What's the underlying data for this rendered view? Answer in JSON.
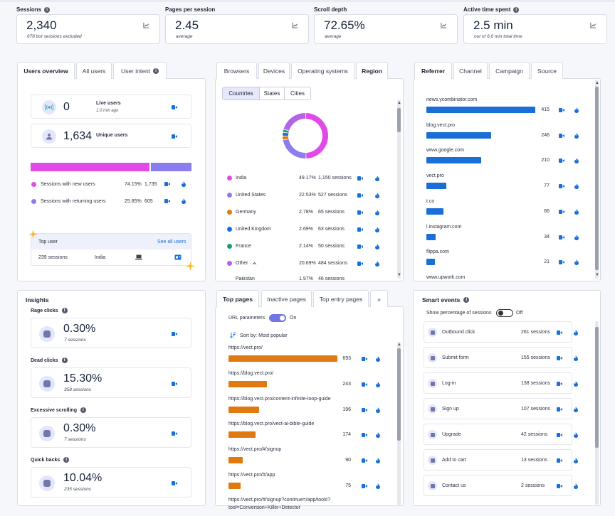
{
  "stats": [
    {
      "label": "Sessions",
      "value": "2,340",
      "sub": "678 bot sessions excluded",
      "info": true
    },
    {
      "label": "Pages per session",
      "value": "2.45",
      "sub": "average",
      "info": false
    },
    {
      "label": "Scroll depth",
      "value": "72.65%",
      "sub": "average",
      "info": false
    },
    {
      "label": "Active time spent",
      "value": "2.5 min",
      "sub": "out of 6.0 min total time",
      "info": true
    }
  ],
  "users": {
    "tabs": [
      "Users overview",
      "All users",
      "User intent"
    ],
    "live_value": "0",
    "live_label": "Live users",
    "live_time": "1.0 min ago",
    "unique_value": "1,634",
    "unique_label": "Unique users",
    "new_label": "Sessions with new users",
    "new_pct": "74.15%",
    "new_count": "1,735",
    "new_fraction": 0.7415,
    "ret_label": "Sessions with returning users",
    "ret_pct": "25.85%",
    "ret_count": "605",
    "top_user_label": "Top user",
    "see_all": "See all users",
    "top_sessions": "239 sessions",
    "top_country": "India"
  },
  "region": {
    "tabs": [
      "Browsers",
      "Devices",
      "Operating systems",
      "Region"
    ],
    "subtabs": [
      "Countries",
      "States",
      "Cities"
    ],
    "rows": [
      {
        "name": "India",
        "pct": "49.17%",
        "sessions": "1,150 sessions",
        "color": "#e14ae8"
      },
      {
        "name": "United States",
        "pct": "22.53%",
        "sessions": "527 sessions",
        "color": "#8b7cf0"
      },
      {
        "name": "Germany",
        "pct": "2.78%",
        "sessions": "65 sessions",
        "color": "#e07a10"
      },
      {
        "name": "United Kingdom",
        "pct": "2.69%",
        "sessions": "63 sessions",
        "color": "#1a6ed8"
      },
      {
        "name": "France",
        "pct": "2.14%",
        "sessions": "50 sessions",
        "color": "#1e9a78"
      },
      {
        "name": "Other",
        "pct": "20.69%",
        "sessions": "484 sessions",
        "color": "#b463e8"
      }
    ],
    "partial_row": {
      "name": "Pakistan",
      "pct": "1.97%",
      "sessions": "46 sessions"
    }
  },
  "referrer": {
    "tabs": [
      "Referrer",
      "Channel",
      "Campaign",
      "Source"
    ],
    "rows": [
      {
        "name": "news.ycombinator.com",
        "count": "415",
        "value": 415
      },
      {
        "name": "blog.vect.pro",
        "count": "246",
        "value": 246
      },
      {
        "name": "www.google.com",
        "count": "210",
        "value": 210
      },
      {
        "name": "vect.pro",
        "count": "77",
        "value": 77
      },
      {
        "name": "t.co",
        "count": "66",
        "value": 66
      },
      {
        "name": "l.instagram.com",
        "count": "34",
        "value": 34
      },
      {
        "name": "flippa.com",
        "count": "21",
        "value": 21
      }
    ],
    "partial_row": "www.upwork.com"
  },
  "insights": {
    "title": "Insights",
    "items": [
      {
        "label": "Rage clicks",
        "value": "0.30%",
        "sub": "7 sessions"
      },
      {
        "label": "Dead clicks",
        "value": "15.30%",
        "sub": "358 sessions"
      },
      {
        "label": "Excessive scrolling",
        "value": "0.30%",
        "sub": "7 sessions"
      },
      {
        "label": "Quick backs",
        "value": "10.04%",
        "sub": "235 sessions"
      }
    ]
  },
  "pages": {
    "tabs": [
      "Top pages",
      "Inactive pages",
      "Top entry pages"
    ],
    "more": "»",
    "url_params_label": "URL parameters",
    "url_params_state": "On",
    "sort_label": "Sort by: Most popular",
    "rows": [
      {
        "url": "https://vect.pro/",
        "count": "693",
        "value": 693
      },
      {
        "url": "https://blog.vect.pro/",
        "count": "243",
        "value": 243
      },
      {
        "url": "https://blog.vect.pro/content-infinite-loop-guide",
        "count": "196",
        "value": 196
      },
      {
        "url": "https://blog.vect.pro/vect-ai-bible-guide",
        "count": "174",
        "value": 174
      },
      {
        "url": "https://vect.pro/#/signup",
        "count": "90",
        "value": 90
      },
      {
        "url": "https://vect.pro/#/app",
        "count": "75",
        "value": 75
      }
    ],
    "partial_row": "https://vect.pro/#/signup?continue=/app/tools?",
    "partial_row2": "tool=Conversion+Killer+Detector"
  },
  "smart": {
    "title": "Smart events",
    "show_pct_label": "Show percentage of sessions",
    "show_pct_state": "Off",
    "rows": [
      {
        "name": "Outbound click",
        "sessions": "261 sessions"
      },
      {
        "name": "Submit form",
        "sessions": "155 sessions"
      },
      {
        "name": "Log-in",
        "sessions": "138 sessions"
      },
      {
        "name": "Sign up",
        "sessions": "107 sessions"
      },
      {
        "name": "Upgrade",
        "sessions": "42 sessions"
      },
      {
        "name": "Add to cart",
        "sessions": "13 sessions"
      },
      {
        "name": "Contact us",
        "sessions": "2 sessions"
      }
    ]
  },
  "colors": {
    "accent": "#1a6ed8",
    "magenta": "#e14ae8",
    "violet": "#8b7cf0",
    "orange": "#e07a10"
  }
}
